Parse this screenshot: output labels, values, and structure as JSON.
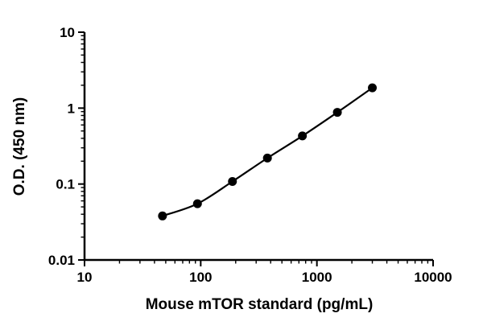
{
  "figure": {
    "background": "#ffffff"
  },
  "chart_data": {
    "type": "line",
    "x": [
      46.88,
      93.75,
      187.5,
      375,
      750,
      1500,
      3000
    ],
    "y": [
      0.038,
      0.055,
      0.108,
      0.22,
      0.43,
      0.88,
      1.85
    ],
    "title": "",
    "xlabel": "Mouse mTOR standard (pg/mL)",
    "ylabel": "O.D. (450 nm)",
    "xscale": "log",
    "yscale": "log",
    "xlim": [
      10,
      10000
    ],
    "ylim": [
      0.01,
      10
    ],
    "x_ticks": [
      10,
      100,
      1000,
      10000
    ],
    "x_tick_labels": [
      "10",
      "100",
      "1000",
      "10000"
    ],
    "y_ticks": [
      0.01,
      0.1,
      1,
      10
    ],
    "y_tick_labels": [
      "0.01",
      "0.1",
      "1",
      "10"
    ],
    "grid": false,
    "legend": "none",
    "marker": "filled-circle",
    "line_color": "#000000",
    "marker_color": "#000000",
    "axis_color": "#000000"
  }
}
